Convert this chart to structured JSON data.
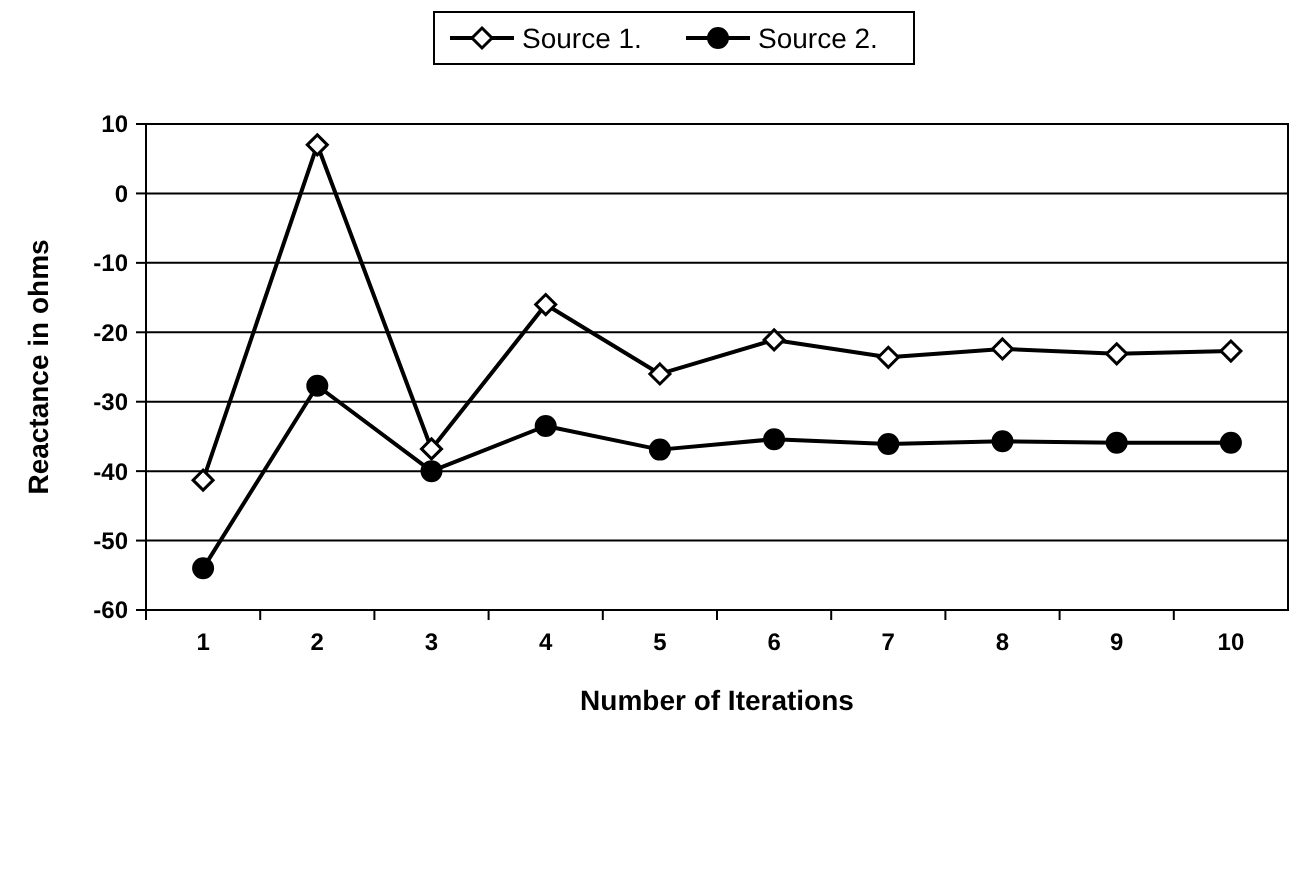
{
  "chart_data": {
    "type": "line",
    "xlabel": "Number of Iterations",
    "ylabel": "Reactance in ohms",
    "categories": [
      "1",
      "2",
      "3",
      "4",
      "5",
      "6",
      "7",
      "8",
      "9",
      "10"
    ],
    "series": [
      {
        "name": "Source 1.",
        "color": "#000000",
        "marker": "diamond",
        "values": [
          -41.3,
          7.0,
          -36.8,
          -16.0,
          -26.0,
          -21.1,
          -23.6,
          -22.4,
          -23.1,
          -22.7
        ]
      },
      {
        "name": "Source 2.",
        "color": "#000000",
        "marker": "circle",
        "values": [
          -54,
          -27.7,
          -40,
          -33.5,
          -36.9,
          -35.4,
          -36.1,
          -35.7,
          -35.9,
          -35.9
        ]
      }
    ],
    "ylim": [
      -60,
      10
    ],
    "yticks": [
      -60,
      -50,
      -40,
      -30,
      -20,
      -10,
      0,
      10
    ],
    "grid": "y",
    "legend": "top",
    "line_style": "solid"
  }
}
